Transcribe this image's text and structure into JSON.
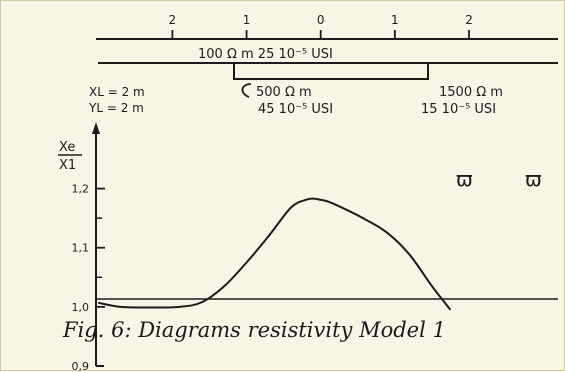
{
  "chart_data": {
    "type": "line",
    "title": "",
    "xlabel": "",
    "ylabel_num": "Xe",
    "ylabel_den": "X1",
    "ylim": [
      0.9,
      1.25
    ],
    "yticks": [
      "0,9",
      "1,0",
      "1,1",
      "1,2"
    ],
    "y_tick_values": [
      0.9,
      1.0,
      1.1,
      1.2
    ],
    "x_tick_values": [
      -2,
      -1,
      0,
      1,
      2
    ],
    "x_tick_labels": [
      "2",
      "1",
      "0",
      "1",
      "2"
    ],
    "xlim": [
      -3.03,
      3.2
    ],
    "grid": false,
    "series": [
      {
        "name": "",
        "x": [
          -3.0,
          -2.7,
          -2.3,
          -1.9,
          -1.6,
          -1.3,
          -1.0,
          -0.7,
          -0.4,
          -0.2,
          -0.1,
          0.0,
          0.1,
          0.3,
          0.6,
          0.9,
          1.2,
          1.5,
          1.75
        ],
        "y": [
          1.007,
          1.0,
          0.999,
          1.0,
          1.008,
          1.035,
          1.075,
          1.12,
          1.168,
          1.181,
          1.183,
          1.181,
          1.178,
          1.167,
          1.148,
          1.125,
          1.088,
          1.035,
          0.995
        ]
      }
    ],
    "legend_symbols": [
      "ϖ",
      "ϖ"
    ]
  },
  "model": {
    "layer1": "100 Ω m  25 10⁻⁵ USI",
    "layer2": "500 Ω m",
    "layer2b": "45 10⁻⁵ USI",
    "layer3": "1500 Ω m",
    "layer3b": "15 10⁻⁵ USI",
    "xl": "XL = 2 m",
    "yl": "YL = 2 m"
  },
  "caption": "Fig. 6: Diagrams resistivity Model 1"
}
